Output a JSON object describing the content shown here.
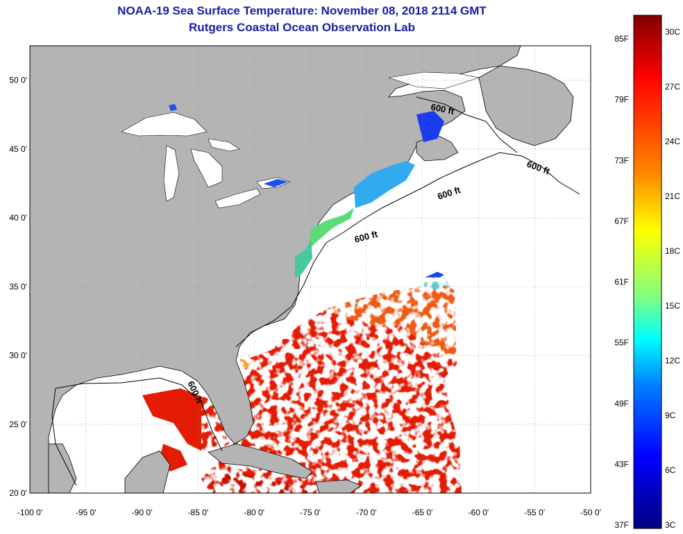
{
  "title": "NOAA-19 Sea Surface Temperature:  November 08, 2018 2114 GMT",
  "subtitle": "Rutgers Coastal Ocean Observation Lab",
  "map": {
    "lon_range": [
      -100,
      -50
    ],
    "lat_range": [
      20,
      52.5
    ],
    "lon_ticks": [
      {
        "value": -100,
        "label": "-100 0'"
      },
      {
        "value": -95,
        "label": "-95 0'"
      },
      {
        "value": -90,
        "label": "-90 0'"
      },
      {
        "value": -85,
        "label": "-85 0'"
      },
      {
        "value": -80,
        "label": "-80 0'"
      },
      {
        "value": -75,
        "label": "-75 0'"
      },
      {
        "value": -70,
        "label": "-70 0'"
      },
      {
        "value": -65,
        "label": "-65 0'"
      },
      {
        "value": -60,
        "label": "-60 0'"
      },
      {
        "value": -55,
        "label": "-55 0'"
      },
      {
        "value": -50,
        "label": "-50 0'"
      }
    ],
    "lat_ticks": [
      {
        "value": 50,
        "label": "50 0'"
      },
      {
        "value": 45,
        "label": "45 0'"
      },
      {
        "value": 40,
        "label": "40 0'"
      },
      {
        "value": 35,
        "label": "35 0'"
      },
      {
        "value": 30,
        "label": "30 0'"
      },
      {
        "value": 25,
        "label": "25 0'"
      },
      {
        "value": 20,
        "label": "20 0'"
      }
    ],
    "grid": "dotted",
    "contour_labels": [
      "600 ft",
      "600 ft",
      "600 ft",
      "600 ft",
      "600 ft"
    ],
    "colors": {
      "land": "#b4b4b4",
      "water": "#ffffff",
      "sst_warm": "#e01a00",
      "sst_orange": "#f05a10",
      "sst_green": "#5cdc70",
      "sst_cyan": "#1ab4f0",
      "sst_blue": "#1a3cf0"
    }
  },
  "colorbar": {
    "fahrenheit_labels": [
      "85F",
      "79F",
      "73F",
      "67F",
      "61F",
      "55F",
      "49F",
      "43F",
      "37F"
    ],
    "celsius_labels": [
      "30C",
      "27C",
      "24C",
      "21C",
      "18C",
      "15C",
      "12C",
      "9C",
      "6C",
      "3C"
    ],
    "stops": [
      "#800000",
      "#ff0000",
      "#ff8000",
      "#ffff00",
      "#80ff80",
      "#00ffff",
      "#0080ff",
      "#0000ff",
      "#000080"
    ]
  }
}
